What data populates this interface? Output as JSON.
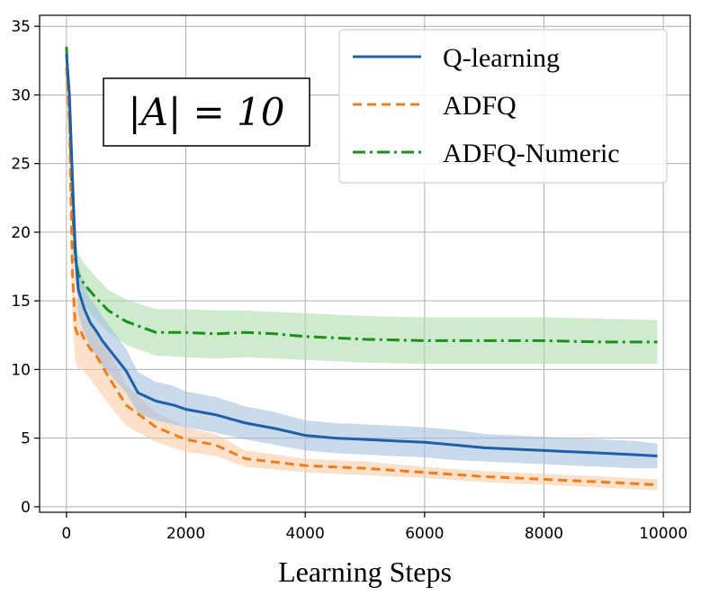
{
  "chart_data": {
    "type": "line",
    "title": "",
    "xlabel": "Learning Steps",
    "ylabel": "",
    "xlim": [
      -450,
      10450
    ],
    "ylim": [
      -0.4,
      35.8
    ],
    "xticks": [
      0,
      2000,
      4000,
      6000,
      8000,
      10000
    ],
    "yticks": [
      0,
      5,
      10,
      15,
      20,
      25,
      30,
      35
    ],
    "grid": true,
    "legend_position": "top-right",
    "annotation": "|A| = 10",
    "series": [
      {
        "name": "Q-learning",
        "color": "#1f5fa8",
        "band_color": "#9dbbdc",
        "line_style": "solid",
        "x": [
          0,
          50,
          100,
          150,
          200,
          300,
          400,
          500,
          600,
          800,
          1000,
          1200,
          1500,
          1800,
          2000,
          2500,
          3000,
          3500,
          4000,
          4500,
          5000,
          5500,
          6000,
          6500,
          7000,
          7500,
          8000,
          8500,
          9000,
          9500,
          9900
        ],
        "y": [
          33.0,
          30.0,
          24.0,
          18.5,
          15.8,
          14.4,
          13.4,
          12.8,
          12.1,
          11.0,
          9.9,
          8.3,
          7.7,
          7.4,
          7.1,
          6.7,
          6.1,
          5.7,
          5.2,
          5.0,
          4.9,
          4.8,
          4.7,
          4.5,
          4.3,
          4.2,
          4.1,
          4.0,
          3.9,
          3.8,
          3.7
        ],
        "lower": [
          32.0,
          28.5,
          21.5,
          16.5,
          14.0,
          12.6,
          11.7,
          11.0,
          10.3,
          9.3,
          8.3,
          6.8,
          6.3,
          6.0,
          5.8,
          5.4,
          4.9,
          4.5,
          4.1,
          3.9,
          3.8,
          3.7,
          3.6,
          3.4,
          3.3,
          3.2,
          3.1,
          3.0,
          2.9,
          2.8,
          2.8
        ],
        "upper": [
          34.0,
          31.5,
          26.5,
          20.5,
          17.6,
          16.2,
          15.1,
          14.6,
          13.9,
          12.7,
          11.5,
          9.8,
          9.1,
          8.8,
          8.4,
          8.0,
          7.3,
          6.9,
          6.3,
          6.1,
          6.0,
          5.9,
          5.8,
          5.6,
          5.3,
          5.2,
          5.1,
          5.0,
          4.9,
          4.8,
          4.6
        ]
      },
      {
        "name": "ADFQ",
        "color": "#f27c1c",
        "band_color": "#f8c99e",
        "line_style": "dashed",
        "x": [
          0,
          50,
          100,
          150,
          200,
          250,
          300,
          400,
          500,
          700,
          1000,
          1500,
          2000,
          2500,
          3000,
          4000,
          5000,
          6000,
          7000,
          8000,
          9000,
          9900
        ],
        "y": [
          32.0,
          28.0,
          17.0,
          13.0,
          12.4,
          12.7,
          12.2,
          11.5,
          11.0,
          9.5,
          7.4,
          5.8,
          4.9,
          4.5,
          3.5,
          3.0,
          2.8,
          2.5,
          2.2,
          2.0,
          1.8,
          1.6
        ],
        "lower": [
          30.5,
          25.0,
          14.0,
          10.5,
          10.0,
          10.2,
          9.8,
          9.3,
          8.7,
          7.5,
          5.9,
          4.7,
          4.0,
          3.7,
          2.9,
          2.5,
          2.3,
          2.1,
          1.8,
          1.6,
          1.4,
          1.2
        ],
        "upper": [
          34.5,
          31.0,
          20.0,
          15.5,
          14.8,
          15.0,
          14.6,
          13.7,
          13.0,
          11.5,
          8.9,
          6.9,
          5.8,
          5.3,
          4.1,
          3.5,
          3.3,
          2.9,
          2.6,
          2.4,
          2.2,
          2.0
        ]
      },
      {
        "name": "ADFQ-Numeric",
        "color": "#1c8f1c",
        "band_color": "#a6dba6",
        "line_style": "dashdot",
        "x": [
          0,
          50,
          100,
          150,
          200,
          300,
          500,
          700,
          1000,
          1500,
          2000,
          2500,
          3000,
          3500,
          4000,
          5000,
          6000,
          7000,
          8000,
          9000,
          9900
        ],
        "y": [
          33.5,
          29.0,
          22.0,
          18.0,
          16.9,
          16.2,
          15.2,
          14.3,
          13.5,
          12.7,
          12.7,
          12.6,
          12.7,
          12.6,
          12.4,
          12.2,
          12.1,
          12.1,
          12.1,
          12.0,
          12.0
        ],
        "lower": [
          32.5,
          27.0,
          20.0,
          16.3,
          15.3,
          14.6,
          13.6,
          12.7,
          11.8,
          11.0,
          10.9,
          10.8,
          10.9,
          10.8,
          10.7,
          10.5,
          10.4,
          10.4,
          10.4,
          10.4,
          10.4
        ],
        "upper": [
          34.5,
          31.0,
          24.0,
          19.5,
          18.4,
          17.7,
          16.7,
          15.8,
          15.1,
          14.4,
          14.4,
          14.3,
          14.3,
          14.2,
          14.1,
          13.9,
          13.8,
          13.8,
          13.8,
          13.7,
          13.6
        ]
      }
    ]
  }
}
